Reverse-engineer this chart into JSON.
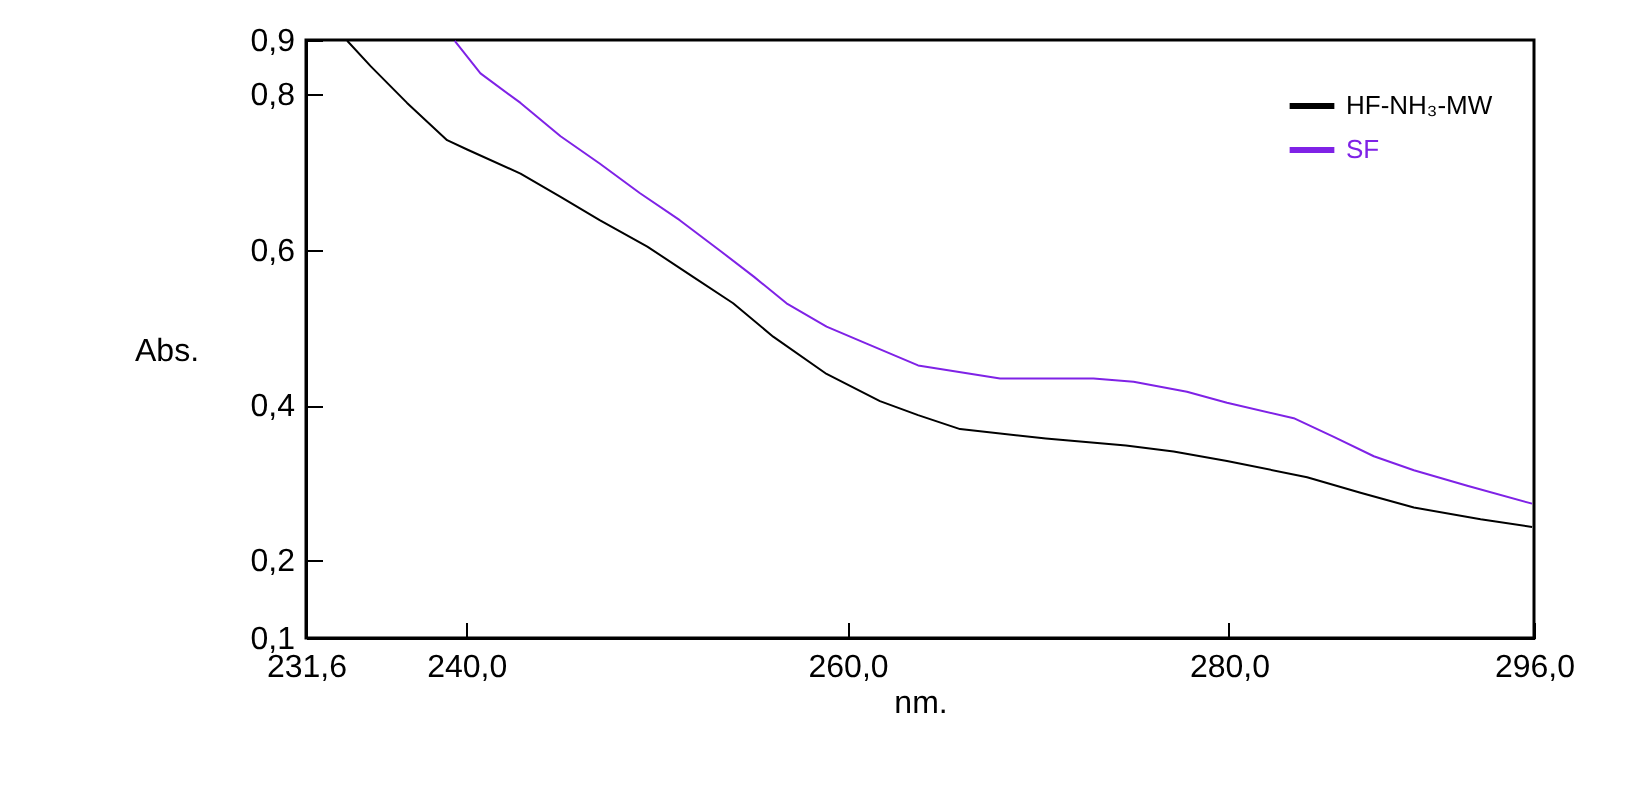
{
  "chart_data": {
    "type": "line",
    "xlabel": "nm.",
    "ylabel": "Abs.",
    "xlim": [
      231.6,
      296.0
    ],
    "ylim": [
      0.1,
      0.87
    ],
    "xticks": [
      {
        "value": 231.6,
        "label": "231,6"
      },
      {
        "value": 240,
        "label": "240,0"
      },
      {
        "value": 260,
        "label": "260,0"
      },
      {
        "value": 280,
        "label": "280,0"
      },
      {
        "value": 296,
        "label": "296,0"
      }
    ],
    "yticks": [
      {
        "value": 0.1,
        "label": "0,1"
      },
      {
        "value": 0.2,
        "label": "0,2"
      },
      {
        "value": 0.4,
        "label": "0,4"
      },
      {
        "value": 0.6,
        "label": "0,6"
      },
      {
        "value": 0.8,
        "label": "0,8"
      },
      {
        "value": 0.87,
        "label": "0,9"
      }
    ],
    "grid": false,
    "legend": "top right",
    "marker": "none",
    "line_style": "solid",
    "series": [
      {
        "name": "HF-NH₃-MW",
        "color": "#000000",
        "x": [
          233.76,
          235.0,
          236.9,
          239.0,
          240.05,
          242.85,
          244.95,
          247.0,
          249.5,
          251.9,
          254.0,
          256.1,
          258.9,
          261.7,
          263.7,
          265.9,
          270.4,
          274.6,
          277.1,
          279.9,
          284.1,
          286.9,
          289.7,
          293.2,
          295.9
        ],
        "values": [
          0.869,
          0.836,
          0.789,
          0.741,
          0.729,
          0.698,
          0.668,
          0.638,
          0.604,
          0.565,
          0.531,
          0.488,
          0.44,
          0.405,
          0.387,
          0.369,
          0.357,
          0.348,
          0.34,
          0.328,
          0.307,
          0.287,
          0.268,
          0.253,
          0.243
        ]
      },
      {
        "name": "SF",
        "color": "#7f22e6",
        "x": [
          239.4,
          240.75,
          242.85,
          244.95,
          247.0,
          249.1,
          251.2,
          253.3,
          255.1,
          256.8,
          258.9,
          261.0,
          263.7,
          268.0,
          272.9,
          275.0,
          277.8,
          279.9,
          283.4,
          285.5,
          287.6,
          289.7,
          292.5,
          295.9
        ],
        "values": [
          0.869,
          0.827,
          0.789,
          0.746,
          0.711,
          0.673,
          0.638,
          0.599,
          0.565,
          0.531,
          0.501,
          0.479,
          0.451,
          0.434,
          0.434,
          0.43,
          0.417,
          0.403,
          0.383,
          0.359,
          0.334,
          0.316,
          0.296,
          0.273
        ]
      }
    ]
  }
}
